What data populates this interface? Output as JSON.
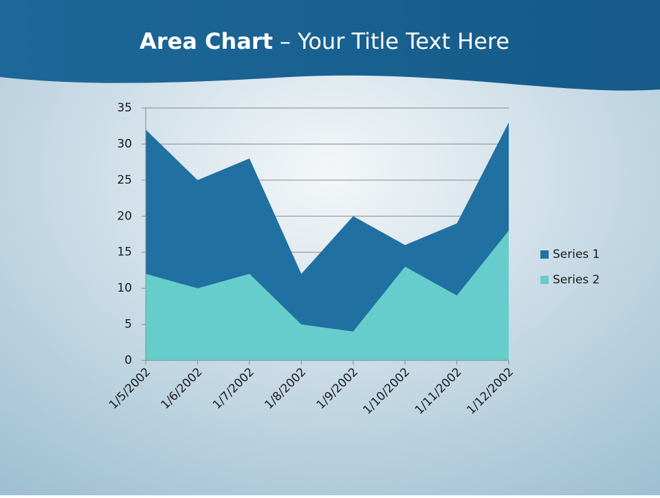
{
  "chart_data": {
    "type": "area",
    "title": [
      "Area Chart",
      "– Your Title Text Here"
    ],
    "categories": [
      "1/5/2002",
      "1/6/2002",
      "1/7/2002",
      "1/8/2002",
      "1/9/2002",
      "1/10/2002",
      "1/11/2002",
      "1/12/2002"
    ],
    "series": [
      {
        "name": "Series 1",
        "color": "#2070a2",
        "values": [
          32,
          25,
          28,
          12,
          20,
          16,
          19,
          33
        ]
      },
      {
        "name": "Series 2",
        "color": "#66cdcc",
        "values": [
          12,
          10,
          12,
          5,
          4,
          13,
          9,
          18
        ]
      }
    ],
    "ylim": [
      0,
      35
    ],
    "yticks": [
      0,
      5,
      10,
      15,
      20,
      25,
      30,
      35
    ],
    "grid": true,
    "legend": "right"
  }
}
